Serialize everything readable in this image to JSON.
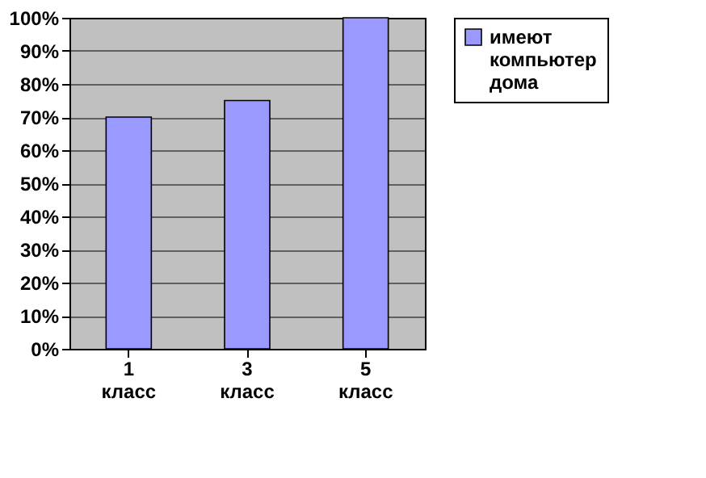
{
  "chart_data": {
    "type": "bar",
    "categories": [
      "1 класс",
      "3 класс",
      "5 класс"
    ],
    "series": [
      {
        "name": "имеют компьютер дома",
        "color": "#9999ff",
        "values": [
          70,
          75,
          100
        ]
      }
    ],
    "ylim": [
      0,
      100
    ],
    "yticks": [
      {
        "value": 0,
        "label": "0%"
      },
      {
        "value": 10,
        "label": "10%"
      },
      {
        "value": 20,
        "label": "20%"
      },
      {
        "value": 30,
        "label": "30%"
      },
      {
        "value": 40,
        "label": "40%"
      },
      {
        "value": 50,
        "label": "50%"
      },
      {
        "value": 60,
        "label": "60%"
      },
      {
        "value": 70,
        "label": "70%"
      },
      {
        "value": 80,
        "label": "80%"
      },
      {
        "value": 90,
        "label": "90%"
      },
      {
        "value": 100,
        "label": "100%"
      }
    ],
    "grid": "y",
    "legend": "right"
  }
}
